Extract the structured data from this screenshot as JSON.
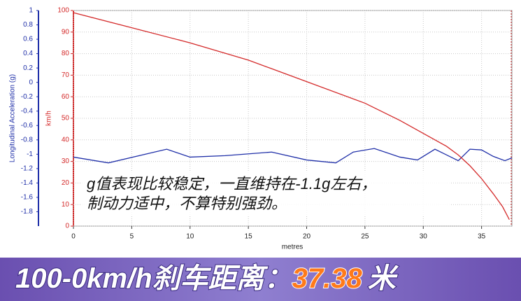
{
  "chart_data": {
    "type": "line",
    "y_label": "Longitudinal Acceleration (g)",
    "y2_label": "km/h",
    "x_label": "metres",
    "xlim": [
      0,
      37.6
    ],
    "xticks": [
      0,
      5,
      10,
      15,
      20,
      25,
      30,
      35
    ],
    "ylim": [
      -2,
      1
    ],
    "yticks": [
      1,
      0.8,
      0.6,
      0.4,
      0.2,
      0,
      -0.2,
      -0.4,
      -0.6,
      -0.8,
      -1,
      -1.2,
      -1.4,
      -1.6,
      -1.8
    ],
    "y2lim": [
      0,
      100
    ],
    "y2ticks": [
      0,
      10,
      20,
      30,
      40,
      50,
      60,
      70,
      80,
      90,
      100
    ],
    "grid": true,
    "series": [
      {
        "color": "#1f2fa8",
        "axis": "y",
        "x": [
          0,
          3,
          8,
          10,
          13,
          17,
          20,
          22.5,
          24,
          25.8,
          28,
          29.5,
          31,
          33,
          34,
          35,
          36,
          37,
          37.6
        ],
        "values": [
          -1.04,
          -1.12,
          -0.93,
          -1.04,
          -1.02,
          -0.97,
          -1.08,
          -1.12,
          -0.97,
          -0.92,
          -1.04,
          -1.08,
          -0.93,
          -1.09,
          -0.93,
          -0.94,
          -1.03,
          -1.09,
          -1.05
        ]
      },
      {
        "color": "#d42a2a",
        "axis": "y2",
        "x": [
          0,
          5,
          10,
          15,
          17,
          20,
          25,
          28,
          30,
          32,
          33,
          34,
          35,
          36,
          36.8,
          37.38
        ],
        "values": [
          99,
          92,
          85,
          77,
          73,
          67,
          57,
          49,
          43,
          37,
          33,
          28,
          22,
          15,
          9,
          3
        ]
      }
    ],
    "annotation": [
      "g值表现比较稳定，一直维持在-1.1g左右，",
      "制动力适中，不算特别强劲。"
    ],
    "banner": {
      "prefix": "100-0km/h刹车距离：",
      "value": "37.38",
      "suffix": "米"
    }
  }
}
